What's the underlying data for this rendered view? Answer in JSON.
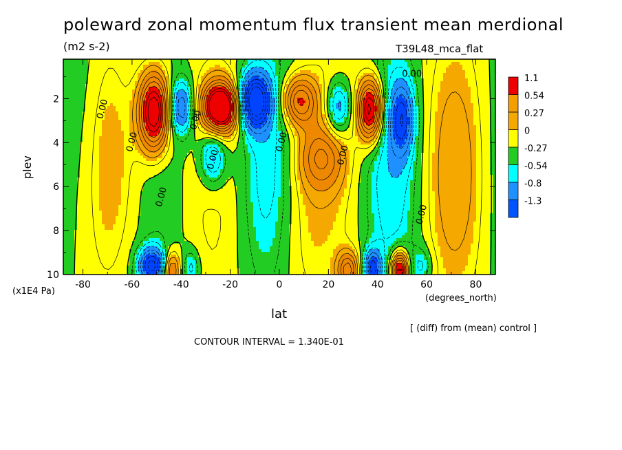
{
  "chart_data": {
    "type": "heatmap",
    "title": "poleward zonal momentum flux transient mean merdional",
    "units": "(m2 s-2)",
    "run_label": "T39L48_mca_flat",
    "xlabel": "lat",
    "x_units": "(degrees_north)",
    "ylabel": "plev",
    "y_units": "(x1E4 Pa)",
    "xlim": [
      -88,
      88
    ],
    "ylim": [
      0.2,
      10
    ],
    "y_inverted": true,
    "x_ticks": [
      -80,
      -60,
      -40,
      -20,
      0,
      20,
      40,
      60,
      80
    ],
    "y_ticks": [
      2,
      4,
      6,
      8,
      10
    ],
    "comparison": "[ (diff) from (mean) control ]",
    "contour_interval": "CONTOUR INTERVAL = 1.340E-01",
    "contour_labels": [
      {
        "text": "0.00",
        "lat": -71,
        "plev": 2.5
      },
      {
        "text": "0.00",
        "lat": -59,
        "plev": 4.0
      },
      {
        "text": "0.00",
        "lat": -47,
        "plev": 6.5
      },
      {
        "text": "0.00",
        "lat": -33,
        "plev": 3.0
      },
      {
        "text": "0.00",
        "lat": -26,
        "plev": 4.8
      },
      {
        "text": "0.00",
        "lat": 2,
        "plev": 4.0
      },
      {
        "text": "0.00",
        "lat": 27,
        "plev": 4.6
      },
      {
        "text": "0.00",
        "lat": 54,
        "plev": 1.0
      },
      {
        "text": "0.00",
        "lat": 59,
        "plev": 7.3
      }
    ],
    "legend": {
      "labels": [
        "1.1",
        "0.54",
        "0.27",
        "0",
        "-0.27",
        "-0.54",
        "-0.8",
        "-1.3"
      ],
      "colors": [
        "#ee0000",
        "#f59e00",
        "#f5a800",
        "#ffff00",
        "#22cc22",
        "#00ffff",
        "#1e90ff",
        "#0055ff"
      ]
    },
    "fill_colors": {
      "pos3": "#ee0000",
      "pos2": "#ee8800",
      "pos1": "#f5a800",
      "pos0": "#ffff00",
      "neg0": "#22cc22",
      "neg1": "#00ffff",
      "neg2": "#1e90ff",
      "neg3": "#0044ff"
    },
    "features": [
      {
        "lat": -51,
        "plev": 2.6,
        "amp": 1.35,
        "wlat": 4.5,
        "wp": 1.3
      },
      {
        "lat": -40,
        "plev": 2.4,
        "amp": -0.7,
        "wlat": 3.5,
        "wp": 0.9
      },
      {
        "lat": -24,
        "plev": 2.4,
        "amp": 1.5,
        "wlat": 5.0,
        "wp": 0.8
      },
      {
        "lat": -10,
        "plev": 2.1,
        "amp": -1.2,
        "wlat": 4.5,
        "wp": 0.9
      },
      {
        "lat": 8,
        "plev": 2.1,
        "amp": 0.8,
        "wlat": 5.0,
        "wp": 0.8
      },
      {
        "lat": 24,
        "plev": 2.4,
        "amp": -0.6,
        "wlat": 3.5,
        "wp": 0.9
      },
      {
        "lat": 37,
        "plev": 2.5,
        "amp": 1.25,
        "wlat": 3.5,
        "wp": 1.0
      },
      {
        "lat": 50,
        "plev": 2.9,
        "amp": -0.7,
        "wlat": 3.5,
        "wp": 1.2
      },
      {
        "lat": -27,
        "plev": 4.6,
        "amp": -0.6,
        "wlat": 4.0,
        "wp": 1.0
      },
      {
        "lat": 17,
        "plev": 4.7,
        "amp": 0.5,
        "wlat": 6.5,
        "wp": 1.0
      },
      {
        "lat": -65,
        "plev": 5.0,
        "amp": 0.2,
        "wlat": 10.0,
        "wp": 3.5
      },
      {
        "lat": -80,
        "plev": 3.5,
        "amp": -0.2,
        "wlat": 6.0,
        "wp": 5.0
      },
      {
        "lat": -5,
        "plev": 5.5,
        "amp": -0.2,
        "wlat": 8.0,
        "wp": 3.5
      },
      {
        "lat": 8,
        "plev": 7.0,
        "amp": 0.2,
        "wlat": 8.0,
        "wp": 3.5
      },
      {
        "lat": 45,
        "plev": 5.5,
        "amp": -0.2,
        "wlat": 8.0,
        "wp": 3.5
      },
      {
        "lat": 72,
        "plev": 5.5,
        "amp": 0.2,
        "wlat": 10.0,
        "wp": 4.0
      },
      {
        "lat": -52,
        "plev": 9.6,
        "amp": -0.95,
        "wlat": 4.0,
        "wp": 0.6
      },
      {
        "lat": -44,
        "plev": 9.8,
        "amp": 0.7,
        "wlat": 2.5,
        "wp": 0.6
      },
      {
        "lat": -36,
        "plev": 9.7,
        "amp": -0.35,
        "wlat": 2.5,
        "wp": 0.6
      },
      {
        "lat": 28,
        "plev": 9.8,
        "amp": 0.7,
        "wlat": 3.0,
        "wp": 0.6
      },
      {
        "lat": 38,
        "plev": 9.7,
        "amp": -0.8,
        "wlat": 2.5,
        "wp": 0.6
      },
      {
        "lat": 49,
        "plev": 9.8,
        "amp": 1.2,
        "wlat": 2.5,
        "wp": 0.6
      },
      {
        "lat": 58,
        "plev": 9.6,
        "amp": -0.3,
        "wlat": 3.0,
        "wp": 0.6
      }
    ]
  }
}
